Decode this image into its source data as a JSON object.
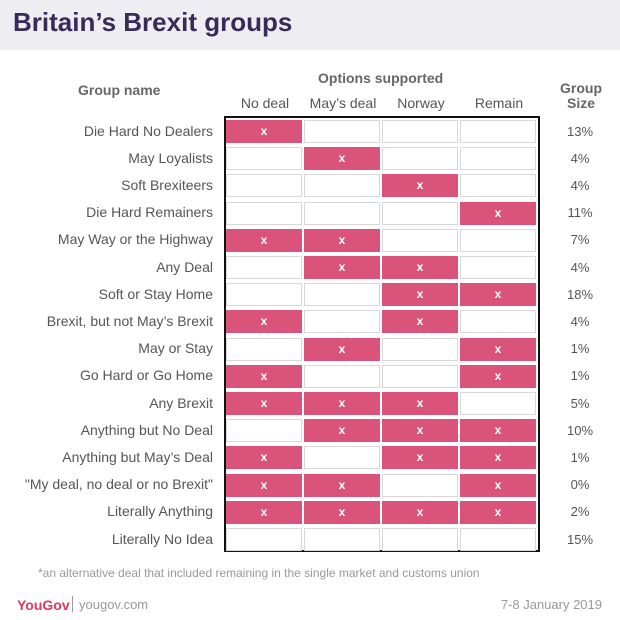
{
  "title": "Britain’s Brexit groups",
  "headers": {
    "group_name": "Group name",
    "options_supported": "Options supported",
    "group_size": "Group Size"
  },
  "chart_data": {
    "type": "table",
    "columns": [
      "No deal",
      "May’s deal",
      "Norway",
      "Remain"
    ],
    "mark": "x",
    "rows": [
      {
        "name": "Die Hard No Dealers",
        "options": [
          1,
          0,
          0,
          0
        ],
        "size": "13%"
      },
      {
        "name": "May Loyalists",
        "options": [
          0,
          1,
          0,
          0
        ],
        "size": "4%"
      },
      {
        "name": "Soft Brexiteers",
        "options": [
          0,
          0,
          1,
          0
        ],
        "size": "4%"
      },
      {
        "name": "Die Hard Remainers",
        "options": [
          0,
          0,
          0,
          1
        ],
        "size": "11%"
      },
      {
        "name": "May Way or the Highway",
        "options": [
          1,
          1,
          0,
          0
        ],
        "size": "7%"
      },
      {
        "name": "Any Deal",
        "options": [
          0,
          1,
          1,
          0
        ],
        "size": "4%"
      },
      {
        "name": "Soft or Stay Home",
        "options": [
          0,
          0,
          1,
          1
        ],
        "size": "18%"
      },
      {
        "name": "Brexit, but not May’s Brexit",
        "options": [
          1,
          0,
          1,
          0
        ],
        "size": "4%"
      },
      {
        "name": "May or Stay",
        "options": [
          0,
          1,
          0,
          1
        ],
        "size": "1%"
      },
      {
        "name": "Go Hard or Go Home",
        "options": [
          1,
          0,
          0,
          1
        ],
        "size": "1%"
      },
      {
        "name": "Any Brexit",
        "options": [
          1,
          1,
          1,
          0
        ],
        "size": "5%"
      },
      {
        "name": "Anything but No Deal",
        "options": [
          0,
          1,
          1,
          1
        ],
        "size": "10%"
      },
      {
        "name": "Anything but May’s Deal",
        "options": [
          1,
          0,
          1,
          1
        ],
        "size": "1%"
      },
      {
        "name": "\"My deal, no deal or no Brexit\"",
        "options": [
          1,
          1,
          0,
          1
        ],
        "size": "0%"
      },
      {
        "name": "Literally Anything",
        "options": [
          1,
          1,
          1,
          1
        ],
        "size": "2%"
      },
      {
        "name": "Literally No Idea",
        "options": [
          0,
          0,
          0,
          0
        ],
        "size": "15%"
      }
    ]
  },
  "footnote": "*an alternative deal that included remaining in the single market and customs union",
  "footer": {
    "logo": "YouGov",
    "url": "yougov.com",
    "date": "7-8 January 2019"
  },
  "colors": {
    "accent": "#d9537a",
    "title": "#3a2a58",
    "header_bg": "#eeedf2",
    "logo": "#e0365d"
  }
}
